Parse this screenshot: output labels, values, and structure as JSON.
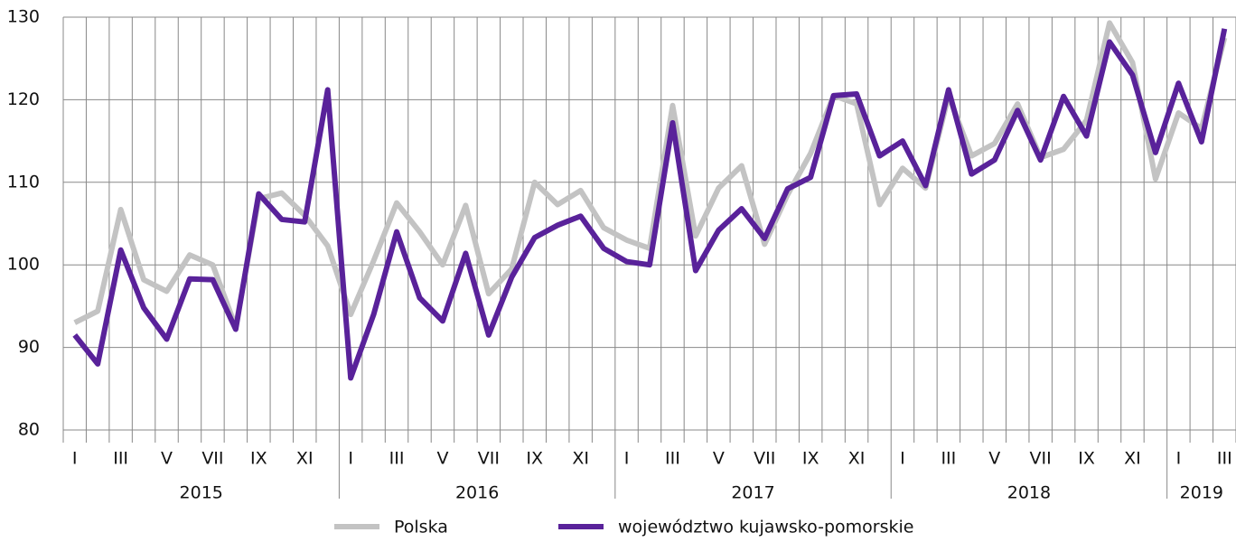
{
  "chart_data": {
    "type": "line",
    "categories": [
      "I",
      null,
      "III",
      null,
      "V",
      null,
      "VII",
      null,
      "IX",
      null,
      "XI",
      null,
      "I",
      null,
      "III",
      null,
      "V",
      null,
      "VII",
      null,
      "IX",
      null,
      "XI",
      null,
      "I",
      null,
      "III",
      null,
      "V",
      null,
      "VII",
      null,
      "IX",
      null,
      "XI",
      null,
      "I",
      null,
      "III",
      null,
      "V",
      null,
      "VII",
      null,
      "IX",
      null,
      "XI",
      null,
      "I",
      null,
      "III"
    ],
    "years": [
      "2015",
      "2016",
      "2017",
      "2018",
      "2019"
    ],
    "series": [
      {
        "name": "Polska",
        "color": "#c3c3c3",
        "values": [
          93,
          94.4,
          106.7,
          98.2,
          96.8,
          101.2,
          100,
          92.5,
          108,
          108.7,
          106,
          102.3,
          94,
          100.5,
          107.5,
          104,
          100,
          107.2,
          96.5,
          99.5,
          110,
          107.3,
          109,
          104.5,
          103,
          102,
          119.3,
          103.5,
          109.3,
          112,
          102.5,
          108.5,
          113.5,
          120.5,
          119.5,
          107.3,
          111.7,
          109.3,
          120.5,
          113.2,
          114.7,
          119.5,
          113,
          114,
          117.5,
          129.3,
          124.5,
          110.4,
          118.4,
          116.5,
          127.5
        ]
      },
      {
        "name": "województwo kujawsko-pomorskie",
        "color": "#59229a",
        "values": [
          91.5,
          88,
          101.8,
          94.8,
          91,
          98.3,
          98.2,
          92.2,
          108.6,
          105.5,
          105.2,
          121.2,
          86.3,
          94,
          104,
          96,
          93.2,
          101.4,
          91.5,
          98.5,
          103.3,
          104.8,
          105.9,
          102,
          100.4,
          100,
          117.2,
          99.3,
          104.2,
          106.8,
          103.2,
          109.2,
          110.6,
          120.5,
          120.7,
          113.2,
          115,
          109.6,
          121.2,
          111,
          112.7,
          118.7,
          112.7,
          120.4,
          115.6,
          127,
          123,
          113.6,
          122,
          114.9,
          128.6
        ]
      }
    ],
    "ylim": [
      80,
      130
    ],
    "yticks": [
      80,
      90,
      100,
      110,
      120,
      130
    ],
    "grid": true
  }
}
